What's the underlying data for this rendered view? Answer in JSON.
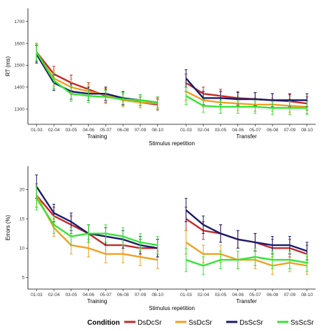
{
  "colors": {
    "DsDcSr": "#c62828",
    "SsDcSr": "#f0a020",
    "DsScSr": "#1a1a6e",
    "SsScSr": "#33e633",
    "axis": "#000000",
    "tick_text": "#333333"
  },
  "legend": {
    "title": "Condition",
    "items": [
      "DsDcSr",
      "SsDcSr",
      "DsScSr",
      "SsScSr"
    ]
  },
  "chart_data": [
    {
      "type": "line",
      "ylabel": "RT (ms)",
      "xlabel": "Stimulus repetition",
      "ylim": [
        1230,
        1760
      ],
      "yticks": [
        1300,
        1400,
        1500,
        1600,
        1700
      ],
      "categories": [
        "01-03",
        "02-04",
        "03-05",
        "04-06",
        "05-07",
        "06-08",
        "07-09",
        "08-10"
      ],
      "panels": [
        "Training",
        "Transfer"
      ],
      "grid": false,
      "series": [
        {
          "name": "DsDcSr",
          "Training": [
            1560,
            1460,
            1420,
            1390,
            1360,
            1350,
            1330,
            1320
          ],
          "Transfer": [
            1420,
            1370,
            1360,
            1350,
            1345,
            1340,
            1335,
            1325
          ],
          "err_Training": [
            40,
            35,
            35,
            30,
            30,
            30,
            25,
            25
          ],
          "err_Transfer": [
            40,
            30,
            30,
            30,
            30,
            30,
            30,
            30
          ]
        },
        {
          "name": "SsDcSr",
          "Training": [
            1555,
            1440,
            1400,
            1380,
            1365,
            1340,
            1330,
            1325
          ],
          "Transfer": [
            1380,
            1340,
            1330,
            1325,
            1320,
            1320,
            1315,
            1310
          ],
          "err_Training": [
            40,
            35,
            35,
            30,
            30,
            30,
            25,
            25
          ],
          "err_Transfer": [
            40,
            30,
            30,
            30,
            30,
            30,
            30,
            30
          ]
        },
        {
          "name": "DsScSr",
          "Training": [
            1550,
            1420,
            1380,
            1370,
            1370,
            1350,
            1340,
            1330
          ],
          "Transfer": [
            1440,
            1350,
            1350,
            1345,
            1345,
            1340,
            1340,
            1340
          ],
          "err_Training": [
            40,
            35,
            35,
            30,
            30,
            30,
            25,
            25
          ],
          "err_Transfer": [
            40,
            30,
            30,
            30,
            30,
            30,
            30,
            30
          ]
        },
        {
          "name": "SsScSr",
          "Training": [
            1560,
            1430,
            1370,
            1360,
            1355,
            1345,
            1340,
            1330
          ],
          "Transfer": [
            1360,
            1315,
            1310,
            1310,
            1310,
            1305,
            1305,
            1305
          ],
          "err_Training": [
            40,
            35,
            35,
            30,
            30,
            30,
            25,
            25
          ],
          "err_Transfer": [
            40,
            30,
            30,
            30,
            30,
            30,
            30,
            30
          ]
        }
      ]
    },
    {
      "type": "line",
      "ylabel": "Errors (%)",
      "xlabel": "Stimulus repetition",
      "ylim": [
        3,
        24
      ],
      "yticks": [
        5,
        10,
        15,
        20
      ],
      "categories": [
        "01-03",
        "02-04",
        "03-05",
        "04-06",
        "05-07",
        "06-08",
        "07-09",
        "08-10"
      ],
      "panels": [
        "Training",
        "Transfer"
      ],
      "grid": false,
      "series": [
        {
          "name": "DsDcSr",
          "Training": [
            19,
            15.5,
            14,
            12.5,
            10.5,
            10.5,
            10,
            10
          ],
          "Transfer": [
            15,
            13,
            12.5,
            11.5,
            11,
            10,
            10,
            9
          ],
          "err_Training": [
            2,
            1.5,
            1.5,
            1.5,
            1.5,
            1.5,
            1.5,
            1.5
          ],
          "err_Transfer": [
            2,
            1.5,
            1.5,
            1.5,
            1.5,
            1.5,
            1.5,
            1.5
          ]
        },
        {
          "name": "SsDcSr",
          "Training": [
            19,
            13.5,
            10.5,
            10,
            9,
            9,
            8.5,
            8
          ],
          "Transfer": [
            11,
            9,
            9,
            8,
            8,
            7,
            7.5,
            7
          ],
          "err_Training": [
            2,
            1.5,
            1.5,
            1.5,
            1.5,
            1.5,
            1.5,
            1.5
          ],
          "err_Transfer": [
            2,
            1.5,
            1.5,
            1.5,
            1.5,
            1.5,
            1.5,
            1.5
          ]
        },
        {
          "name": "DsScSr",
          "Training": [
            20.5,
            16,
            14.5,
            12.5,
            12,
            11.5,
            10.5,
            10
          ],
          "Transfer": [
            16.5,
            14,
            12.5,
            11.5,
            11,
            10.5,
            10.5,
            9.5
          ],
          "err_Training": [
            2,
            1.5,
            1.5,
            1.5,
            1.5,
            1.5,
            1.5,
            1.5
          ],
          "err_Transfer": [
            2,
            1.5,
            1.5,
            1.5,
            1.5,
            1.5,
            1.5,
            1.5
          ]
        },
        {
          "name": "SsScSr",
          "Training": [
            18.5,
            14,
            12,
            12.5,
            12.5,
            12,
            11,
            10.5
          ],
          "Transfer": [
            8,
            7,
            8,
            8,
            8.5,
            8,
            8,
            7.5
          ],
          "err_Training": [
            2,
            1.5,
            1.5,
            1.5,
            1.5,
            1.5,
            1.5,
            1.5
          ],
          "err_Transfer": [
            2,
            1.5,
            1.5,
            1.5,
            1.5,
            1.5,
            1.5,
            1.5
          ]
        }
      ]
    }
  ]
}
